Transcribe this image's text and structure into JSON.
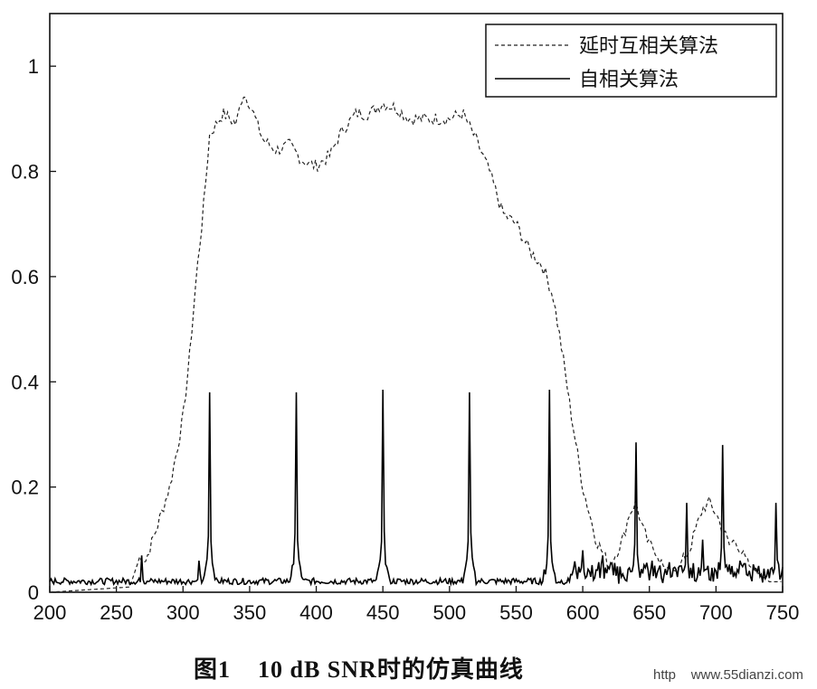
{
  "chart_data": {
    "type": "line",
    "title": "",
    "xlabel": "",
    "ylabel": "",
    "xlim": [
      200,
      750
    ],
    "ylim": [
      0,
      1.1
    ],
    "xticks": [
      200,
      250,
      300,
      350,
      400,
      450,
      500,
      550,
      600,
      650,
      700,
      750
    ],
    "yticks": [
      0,
      0.2,
      0.4,
      0.6,
      0.8,
      1
    ],
    "grid": false,
    "legend": {
      "placement": "top-right",
      "entries": [
        "延时互相关算法",
        "自相关算法"
      ]
    },
    "series": [
      {
        "name": "延时互相关算法",
        "style": "dashed",
        "x": [
          200,
          260,
          268,
          272,
          280,
          290,
          300,
          305,
          310,
          315,
          320,
          330,
          340,
          345,
          350,
          360,
          370,
          380,
          390,
          400,
          410,
          420,
          430,
          440,
          450,
          460,
          470,
          480,
          490,
          500,
          510,
          520,
          530,
          540,
          550,
          560,
          570,
          578,
          585,
          590,
          600,
          610,
          620,
          630,
          635,
          640,
          645,
          650,
          655,
          660,
          670,
          680,
          690,
          695,
          700,
          705,
          710,
          715,
          720,
          725,
          730,
          740,
          750
        ],
        "y": [
          0.0,
          0.01,
          0.07,
          0.06,
          0.12,
          0.2,
          0.33,
          0.45,
          0.6,
          0.72,
          0.87,
          0.91,
          0.89,
          0.95,
          0.93,
          0.86,
          0.84,
          0.85,
          0.82,
          0.81,
          0.83,
          0.88,
          0.91,
          0.91,
          0.93,
          0.92,
          0.9,
          0.9,
          0.9,
          0.9,
          0.91,
          0.86,
          0.8,
          0.72,
          0.7,
          0.65,
          0.62,
          0.56,
          0.45,
          0.36,
          0.2,
          0.1,
          0.05,
          0.1,
          0.15,
          0.17,
          0.12,
          0.09,
          0.08,
          0.05,
          0.04,
          0.08,
          0.16,
          0.17,
          0.15,
          0.12,
          0.09,
          0.1,
          0.07,
          0.05,
          0.04,
          0.02,
          0.02
        ]
      },
      {
        "name": "自相关算法",
        "style": "solid",
        "baseline": 0.015,
        "peaks": [
          {
            "x": 269,
            "y": 0.07
          },
          {
            "x": 312,
            "y": 0.06
          },
          {
            "x": 320,
            "y": 0.38
          },
          {
            "x": 385,
            "y": 0.38
          },
          {
            "x": 450,
            "y": 0.385
          },
          {
            "x": 515,
            "y": 0.38
          },
          {
            "x": 575,
            "y": 0.385
          },
          {
            "x": 600,
            "y": 0.08
          },
          {
            "x": 615,
            "y": 0.07
          },
          {
            "x": 640,
            "y": 0.285
          },
          {
            "x": 652,
            "y": 0.06
          },
          {
            "x": 665,
            "y": 0.05
          },
          {
            "x": 678,
            "y": 0.17
          },
          {
            "x": 690,
            "y": 0.1
          },
          {
            "x": 705,
            "y": 0.28
          },
          {
            "x": 718,
            "y": 0.06
          },
          {
            "x": 732,
            "y": 0.05
          },
          {
            "x": 745,
            "y": 0.17
          }
        ]
      }
    ]
  },
  "caption": "图1    10 dB SNR时的仿真曲线",
  "watermark": "http    www.55dianzi.com"
}
